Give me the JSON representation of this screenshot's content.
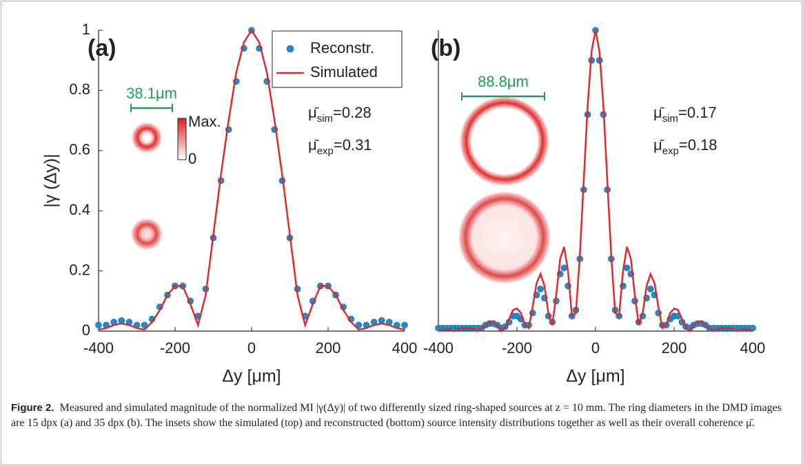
{
  "chart_data": [
    {
      "type": "line",
      "panel_label": "(a)",
      "xlabel": "Δy [μm]",
      "ylabel": "|γ (Δy)|",
      "scale_bar": "38.1μm",
      "colorbar_labels": [
        "Max.",
        "0"
      ],
      "stats": [
        {
          "symbol": "μ̄",
          "sub": "sim",
          "text": "=0.28"
        },
        {
          "symbol": "μ̄",
          "sub": "exp",
          "text": "=0.31"
        }
      ],
      "legend": "northeast",
      "x": [
        -400,
        -380,
        -360,
        -340,
        -320,
        -300,
        -280,
        -260,
        -240,
        -220,
        -200,
        -180,
        -160,
        -140,
        -120,
        -100,
        -80,
        -60,
        -40,
        -20,
        0,
        20,
        40,
        60,
        80,
        100,
        120,
        140,
        160,
        180,
        200,
        220,
        240,
        260,
        280,
        300,
        320,
        340,
        360,
        380,
        400
      ],
      "series": [
        {
          "name": "Reconstr.",
          "style": "markers",
          "color": "#1f8dcc",
          "values": [
            0.02,
            0.02,
            0.03,
            0.035,
            0.03,
            0.02,
            0.02,
            0.04,
            0.08,
            0.12,
            0.15,
            0.15,
            0.1,
            0.05,
            0.14,
            0.31,
            0.5,
            0.67,
            0.83,
            0.94,
            1.0,
            0.94,
            0.83,
            0.67,
            0.5,
            0.31,
            0.14,
            0.05,
            0.1,
            0.15,
            0.15,
            0.12,
            0.08,
            0.04,
            0.02,
            0.02,
            0.03,
            0.035,
            0.03,
            0.02,
            0.02
          ]
        },
        {
          "name": "Simulated",
          "style": "line",
          "color": "#e3262a",
          "values": [
            0.005,
            0.01,
            0.02,
            0.025,
            0.02,
            0.01,
            0.005,
            0.03,
            0.07,
            0.12,
            0.15,
            0.15,
            0.09,
            0.02,
            0.12,
            0.32,
            0.52,
            0.7,
            0.86,
            0.96,
            1.0,
            0.96,
            0.86,
            0.7,
            0.52,
            0.32,
            0.12,
            0.02,
            0.09,
            0.15,
            0.15,
            0.12,
            0.07,
            0.03,
            0.005,
            0.01,
            0.02,
            0.025,
            0.02,
            0.01,
            0.005
          ]
        }
      ],
      "xlim": [
        -400,
        400
      ],
      "xticks": [
        -400,
        -200,
        0,
        200,
        400
      ],
      "ylim": [
        0,
        1
      ],
      "yticks": [
        0,
        0.2,
        0.4,
        0.6,
        0.8,
        1
      ]
    },
    {
      "type": "line",
      "panel_label": "(b)",
      "xlabel": "Δy [μm]",
      "scale_bar": "88.8μm",
      "stats": [
        {
          "symbol": "μ̄",
          "sub": "sim",
          "text": "=0.17"
        },
        {
          "symbol": "μ̄",
          "sub": "exp",
          "text": "=0.18"
        }
      ],
      "x": [
        -400,
        -390,
        -380,
        -370,
        -360,
        -350,
        -340,
        -330,
        -320,
        -310,
        -300,
        -290,
        -280,
        -270,
        -260,
        -250,
        -240,
        -230,
        -220,
        -210,
        -200,
        -190,
        -180,
        -170,
        -160,
        -150,
        -140,
        -130,
        -120,
        -110,
        -100,
        -90,
        -80,
        -70,
        -60,
        -50,
        -40,
        -30,
        -20,
        -10,
        0,
        10,
        20,
        30,
        40,
        50,
        60,
        70,
        80,
        90,
        100,
        110,
        120,
        130,
        140,
        150,
        160,
        170,
        180,
        190,
        200,
        210,
        220,
        230,
        240,
        250,
        260,
        270,
        280,
        290,
        300,
        310,
        320,
        330,
        340,
        350,
        360,
        370,
        380,
        390,
        400
      ],
      "series": [
        {
          "style": "markers",
          "color": "#1f8dcc",
          "values": [
            0.01,
            0.01,
            0.01,
            0.01,
            0.01,
            0.01,
            0.01,
            0.01,
            0.01,
            0.01,
            0.01,
            0.01,
            0.02,
            0.025,
            0.025,
            0.02,
            0.01,
            0.015,
            0.03,
            0.05,
            0.05,
            0.04,
            0.02,
            0.02,
            0.06,
            0.12,
            0.14,
            0.11,
            0.05,
            0.03,
            0.1,
            0.19,
            0.21,
            0.15,
            0.05,
            0.07,
            0.24,
            0.47,
            0.72,
            0.9,
            1.0,
            0.9,
            0.72,
            0.47,
            0.24,
            0.07,
            0.05,
            0.15,
            0.21,
            0.19,
            0.1,
            0.03,
            0.05,
            0.11,
            0.14,
            0.12,
            0.06,
            0.02,
            0.02,
            0.04,
            0.05,
            0.05,
            0.03,
            0.015,
            0.01,
            0.02,
            0.025,
            0.025,
            0.02,
            0.01,
            0.01,
            0.01,
            0.01,
            0.01,
            0.01,
            0.01,
            0.01,
            0.01,
            0.01,
            0.01,
            0.01
          ]
        },
        {
          "style": "line",
          "color": "#e3262a",
          "values": [
            0,
            0.005,
            0.005,
            0.005,
            0,
            0.005,
            0.01,
            0.01,
            0.01,
            0.005,
            0,
            0.01,
            0.02,
            0.03,
            0.03,
            0.02,
            0,
            0.01,
            0.04,
            0.07,
            0.075,
            0.06,
            0.02,
            0.01,
            0.08,
            0.16,
            0.19,
            0.15,
            0.06,
            0.02,
            0.12,
            0.24,
            0.28,
            0.2,
            0.05,
            0.06,
            0.25,
            0.5,
            0.75,
            0.93,
            1.0,
            0.93,
            0.75,
            0.5,
            0.25,
            0.06,
            0.05,
            0.2,
            0.28,
            0.24,
            0.12,
            0.02,
            0.06,
            0.15,
            0.19,
            0.16,
            0.08,
            0.01,
            0.02,
            0.06,
            0.075,
            0.07,
            0.04,
            0.01,
            0,
            0.02,
            0.03,
            0.03,
            0.02,
            0.01,
            0,
            0.005,
            0.01,
            0.01,
            0.01,
            0.005,
            0,
            0.005,
            0.005,
            0.005,
            0
          ]
        }
      ],
      "xlim": [
        -400,
        400
      ],
      "xticks": [
        -400,
        -200,
        0,
        200,
        400
      ],
      "ylim": [
        0,
        1
      ]
    }
  ],
  "caption": {
    "label": "Figure 2.",
    "text": "Measured and simulated magnitude of the normalized MI |γ(Δy)| of two differently sized ring-shaped sources at z = 10 mm. The ring diameters in the DMD images are 15 dpx (a) and 35 dpx (b). The insets show the simulated (top) and reconstructed (bottom) source intensity distributions together as well as their overall coherence μ̄."
  }
}
